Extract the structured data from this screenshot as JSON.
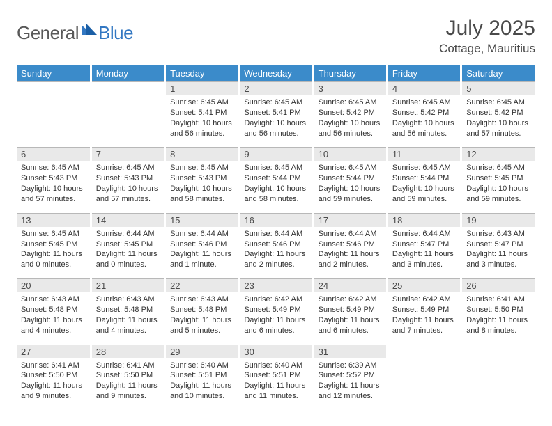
{
  "logo": {
    "text_general": "General",
    "text_blue": "Blue"
  },
  "title": {
    "month": "July 2025",
    "location": "Cottage, Mauritius"
  },
  "colors": {
    "header_bg": "#3b8bca",
    "header_text": "#ffffff",
    "daynum_bg": "#e9e9e9",
    "text": "#4a4a4a",
    "logo_grey": "#595959",
    "logo_blue": "#3277c2",
    "border": "#b8b8b8"
  },
  "days": [
    "Sunday",
    "Monday",
    "Tuesday",
    "Wednesday",
    "Thursday",
    "Friday",
    "Saturday"
  ],
  "weeks": [
    {
      "nums": [
        "",
        "",
        "1",
        "2",
        "3",
        "4",
        "5"
      ],
      "details": [
        "",
        "",
        "Sunrise: 6:45 AM\nSunset: 5:41 PM\nDaylight: 10 hours and 56 minutes.",
        "Sunrise: 6:45 AM\nSunset: 5:41 PM\nDaylight: 10 hours and 56 minutes.",
        "Sunrise: 6:45 AM\nSunset: 5:42 PM\nDaylight: 10 hours and 56 minutes.",
        "Sunrise: 6:45 AM\nSunset: 5:42 PM\nDaylight: 10 hours and 56 minutes.",
        "Sunrise: 6:45 AM\nSunset: 5:42 PM\nDaylight: 10 hours and 57 minutes."
      ]
    },
    {
      "nums": [
        "6",
        "7",
        "8",
        "9",
        "10",
        "11",
        "12"
      ],
      "details": [
        "Sunrise: 6:45 AM\nSunset: 5:43 PM\nDaylight: 10 hours and 57 minutes.",
        "Sunrise: 6:45 AM\nSunset: 5:43 PM\nDaylight: 10 hours and 57 minutes.",
        "Sunrise: 6:45 AM\nSunset: 5:43 PM\nDaylight: 10 hours and 58 minutes.",
        "Sunrise: 6:45 AM\nSunset: 5:44 PM\nDaylight: 10 hours and 58 minutes.",
        "Sunrise: 6:45 AM\nSunset: 5:44 PM\nDaylight: 10 hours and 59 minutes.",
        "Sunrise: 6:45 AM\nSunset: 5:44 PM\nDaylight: 10 hours and 59 minutes.",
        "Sunrise: 6:45 AM\nSunset: 5:45 PM\nDaylight: 10 hours and 59 minutes."
      ]
    },
    {
      "nums": [
        "13",
        "14",
        "15",
        "16",
        "17",
        "18",
        "19"
      ],
      "details": [
        "Sunrise: 6:45 AM\nSunset: 5:45 PM\nDaylight: 11 hours and 0 minutes.",
        "Sunrise: 6:44 AM\nSunset: 5:45 PM\nDaylight: 11 hours and 0 minutes.",
        "Sunrise: 6:44 AM\nSunset: 5:46 PM\nDaylight: 11 hours and 1 minute.",
        "Sunrise: 6:44 AM\nSunset: 5:46 PM\nDaylight: 11 hours and 2 minutes.",
        "Sunrise: 6:44 AM\nSunset: 5:46 PM\nDaylight: 11 hours and 2 minutes.",
        "Sunrise: 6:44 AM\nSunset: 5:47 PM\nDaylight: 11 hours and 3 minutes.",
        "Sunrise: 6:43 AM\nSunset: 5:47 PM\nDaylight: 11 hours and 3 minutes."
      ]
    },
    {
      "nums": [
        "20",
        "21",
        "22",
        "23",
        "24",
        "25",
        "26"
      ],
      "details": [
        "Sunrise: 6:43 AM\nSunset: 5:48 PM\nDaylight: 11 hours and 4 minutes.",
        "Sunrise: 6:43 AM\nSunset: 5:48 PM\nDaylight: 11 hours and 4 minutes.",
        "Sunrise: 6:43 AM\nSunset: 5:48 PM\nDaylight: 11 hours and 5 minutes.",
        "Sunrise: 6:42 AM\nSunset: 5:49 PM\nDaylight: 11 hours and 6 minutes.",
        "Sunrise: 6:42 AM\nSunset: 5:49 PM\nDaylight: 11 hours and 6 minutes.",
        "Sunrise: 6:42 AM\nSunset: 5:49 PM\nDaylight: 11 hours and 7 minutes.",
        "Sunrise: 6:41 AM\nSunset: 5:50 PM\nDaylight: 11 hours and 8 minutes."
      ]
    },
    {
      "nums": [
        "27",
        "28",
        "29",
        "30",
        "31",
        "",
        ""
      ],
      "details": [
        "Sunrise: 6:41 AM\nSunset: 5:50 PM\nDaylight: 11 hours and 9 minutes.",
        "Sunrise: 6:41 AM\nSunset: 5:50 PM\nDaylight: 11 hours and 9 minutes.",
        "Sunrise: 6:40 AM\nSunset: 5:51 PM\nDaylight: 11 hours and 10 minutes.",
        "Sunrise: 6:40 AM\nSunset: 5:51 PM\nDaylight: 11 hours and 11 minutes.",
        "Sunrise: 6:39 AM\nSunset: 5:52 PM\nDaylight: 11 hours and 12 minutes.",
        "",
        ""
      ]
    }
  ]
}
